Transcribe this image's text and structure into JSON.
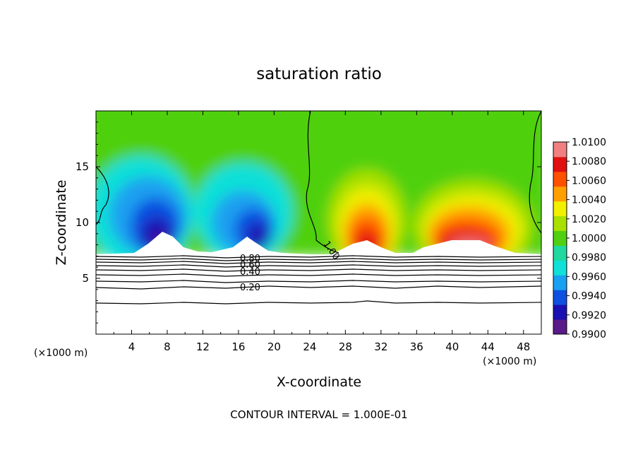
{
  "chart_data": {
    "type": "heatmap",
    "title": "saturation ratio",
    "xlabel": "X-coordinate",
    "ylabel": "Z-coordinate",
    "x_unit": "(×1000 m)",
    "xlim": [
      0,
      50
    ],
    "ylim": [
      0,
      20
    ],
    "x_ticks": [
      4,
      8,
      12,
      16,
      20,
      24,
      28,
      32,
      36,
      40,
      44,
      48
    ],
    "y_ticks": [
      5,
      10,
      15
    ],
    "colorbar": {
      "levels": [
        "0.9900",
        "0.9920",
        "0.9940",
        "0.9960",
        "0.9980",
        "1.0000",
        "1.0020",
        "1.0040",
        "1.0060",
        "1.0080",
        "1.0100"
      ],
      "colors": [
        "#5a1a8a",
        "#1a0fb0",
        "#1050e0",
        "#1aa0f0",
        "#10e0d8",
        "#20d8a0",
        "#50d010",
        "#a8e000",
        "#f0f000",
        "#ffa000",
        "#ff5000",
        "#e01010",
        "#f08080"
      ],
      "range": [
        0.99,
        1.01
      ]
    },
    "contour_labels": [
      {
        "text": "1.00"
      },
      {
        "text": "0.80"
      },
      {
        "text": "0.60"
      },
      {
        "text": "0.40"
      },
      {
        "text": "0.20"
      }
    ],
    "contour_interval_label": "CONTOUR INTERVAL = 1.000E-01"
  }
}
